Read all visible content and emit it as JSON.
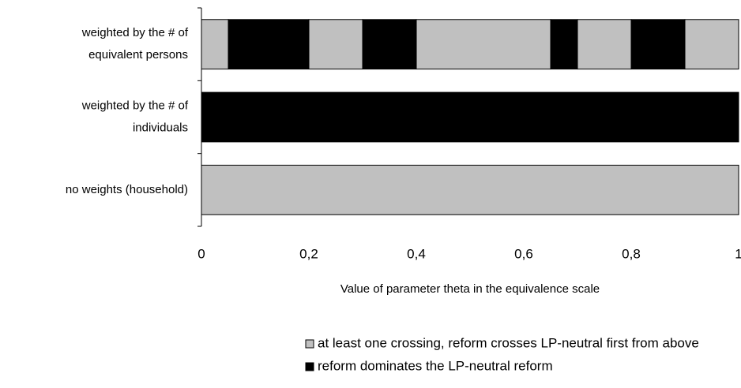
{
  "chart_data": {
    "type": "bar",
    "orientation": "horizontal",
    "stacked": true,
    "x_label": "Value of parameter theta in the equivalence scale",
    "categories": [
      [
        "weighted by the # of",
        "equivalent persons"
      ],
      [
        "weighted by the # of",
        "individuals"
      ],
      [
        "no weights (household)"
      ]
    ],
    "series": [
      {
        "name": "at least one crossing, reform crosses LP-neutral first from above",
        "color": "#c0c0c0"
      },
      {
        "name": "reform dominates the LP-neutral reform",
        "color": "#000000"
      }
    ],
    "segments": [
      [
        {
          "series": 0,
          "value": 0.05
        },
        {
          "series": 1,
          "value": 0.15
        },
        {
          "series": 0,
          "value": 0.1
        },
        {
          "series": 1,
          "value": 0.1
        },
        {
          "series": 0,
          "value": 0.25
        },
        {
          "series": 1,
          "value": 0.05
        },
        {
          "series": 0,
          "value": 0.1
        },
        {
          "series": 1,
          "value": 0.1
        },
        {
          "series": 0,
          "value": 0.1
        }
      ],
      [
        {
          "series": 1,
          "value": 1
        }
      ],
      [
        {
          "series": 0,
          "value": 1
        }
      ]
    ],
    "xlim": [
      0,
      1
    ],
    "xticks": [
      0,
      {
        "value": 0.2,
        "label": "0,2"
      },
      {
        "value": 0.4,
        "label": "0,4"
      },
      {
        "value": 0.6,
        "label": "0,6"
      },
      {
        "value": 0.8,
        "label": "0,8"
      },
      1
    ],
    "grid": false
  }
}
